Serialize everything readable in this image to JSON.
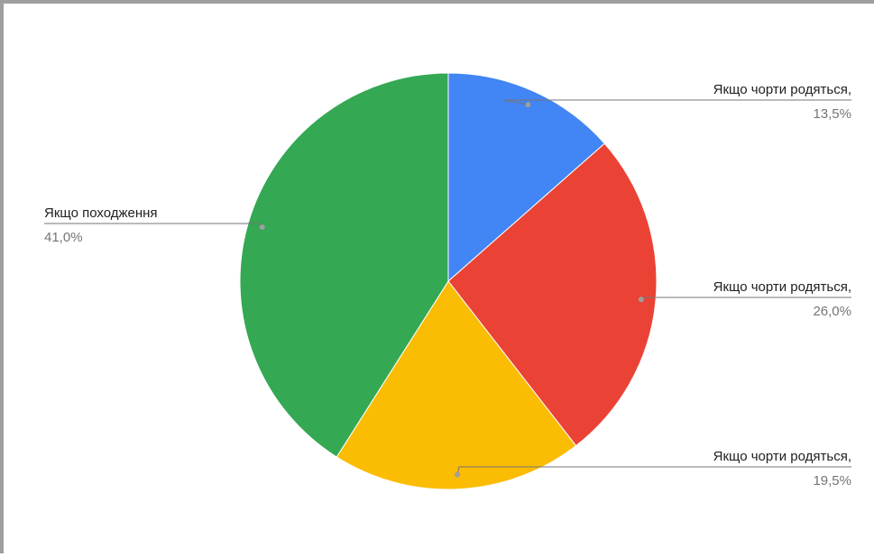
{
  "chart_data": {
    "type": "pie",
    "slices": [
      {
        "label": "Якщо чорти родяться,",
        "value": 13.5,
        "value_label": "13,5%",
        "color": "#4285f4",
        "label_side": "right"
      },
      {
        "label": "Якщо чорти родяться,",
        "value": 26.0,
        "value_label": "26,0%",
        "color": "#ea4335",
        "label_side": "right"
      },
      {
        "label": "Якщо чорти родяться,",
        "value": 19.5,
        "value_label": "19,5%",
        "color": "#fbbc04",
        "label_side": "right"
      },
      {
        "label": "Якщо походження",
        "value": 41.0,
        "value_label": "41,0%",
        "color": "#34a853",
        "label_side": "left"
      }
    ],
    "start_angle": "12 o'clock",
    "direction": "clockwise",
    "legend": "none",
    "labels": "outside with leader lines"
  }
}
